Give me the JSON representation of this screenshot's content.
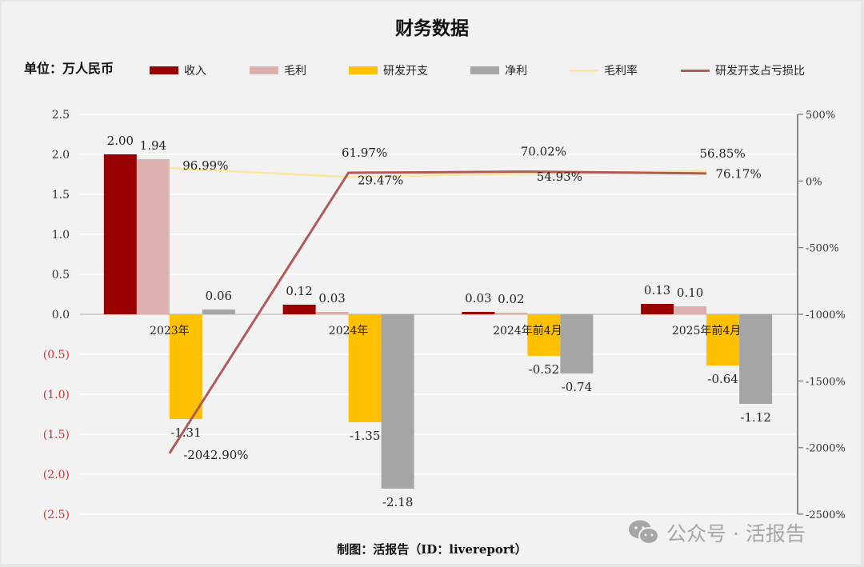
{
  "title": "财务数据",
  "unit_label": "单位：万人民币",
  "footer": "制图：活报告（ID：livereport）",
  "watermark": "公众号 · 活报告",
  "legend": [
    {
      "label": "收入",
      "type": "bar",
      "color": "#990000"
    },
    {
      "label": "毛利",
      "type": "bar",
      "color": "#deb1b1"
    },
    {
      "label": "研发开支",
      "type": "bar",
      "color": "#ffc000"
    },
    {
      "label": "净利",
      "type": "bar",
      "color": "#a5a5a5"
    },
    {
      "label": "毛利率",
      "type": "line",
      "color": "#fbe6a2"
    },
    {
      "label": "研发开支占亏损比",
      "type": "line",
      "color": "#b05a5a"
    }
  ],
  "left_axis_ticks": [
    "2.5",
    "2.0",
    "1.5",
    "1.0",
    "0.5",
    "0.0",
    "(0.5)",
    "(1.0)",
    "(1.5)",
    "(2.0)",
    "(2.5)"
  ],
  "right_axis_ticks": [
    "500%",
    "0%",
    "-500%",
    "-1000%",
    "-1500%",
    "-2000%",
    "-2500%"
  ],
  "chart_data": {
    "type": "bar",
    "title": "财务数据",
    "ylabel": "单位：万人民币",
    "categories": [
      "2023年",
      "2024年",
      "2024年前4月",
      "2025年前4月"
    ],
    "ylim": [
      -2.5,
      2.5
    ],
    "y2lim": [
      -2500,
      500
    ],
    "grid": true,
    "legend_position": "top",
    "series": [
      {
        "name": "收入",
        "type": "bar",
        "axis": "left",
        "values": [
          2.0,
          0.12,
          0.03,
          0.13
        ],
        "labels": [
          "2.00",
          "0.12",
          "0.03",
          "0.13"
        ]
      },
      {
        "name": "毛利",
        "type": "bar",
        "axis": "left",
        "values": [
          1.94,
          0.03,
          0.02,
          0.1
        ],
        "labels": [
          "1.94",
          "0.03",
          "0.02",
          "0.10"
        ]
      },
      {
        "name": "研发开支",
        "type": "bar",
        "axis": "left",
        "values": [
          -1.31,
          -1.35,
          -0.52,
          -0.64
        ],
        "labels": [
          "-1.31",
          "-1.35",
          "-0.52",
          "-0.64"
        ]
      },
      {
        "name": "净利",
        "type": "bar",
        "axis": "left",
        "values": [
          0.06,
          -2.18,
          -0.74,
          -1.12
        ],
        "labels": [
          "0.06",
          "-2.18",
          "-0.74",
          "-1.12"
        ]
      },
      {
        "name": "毛利率",
        "type": "line",
        "axis": "right",
        "values": [
          96.99,
          29.47,
          54.93,
          76.17
        ],
        "labels": [
          "96.99%",
          "29.47%",
          "54.93%",
          "76.17%"
        ]
      },
      {
        "name": "研发开支占亏损比",
        "type": "line",
        "axis": "right",
        "values": [
          -2042.9,
          61.97,
          70.02,
          56.85
        ],
        "labels": [
          "-2042.90%",
          "61.97%",
          "70.02%",
          "56.85%"
        ]
      }
    ]
  }
}
